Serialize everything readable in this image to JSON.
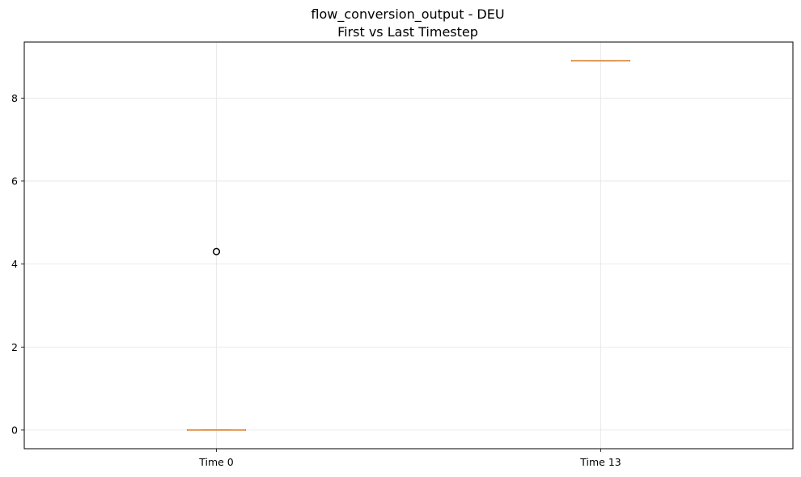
{
  "chart_data": {
    "type": "box",
    "title": "flow_conversion_output - DEU",
    "subtitle": "First vs Last Timestep",
    "xlabel": "",
    "ylabel": "",
    "categories": [
      "Time 0",
      "Time 13"
    ],
    "boxes": [
      {
        "category": "Time 0",
        "min": 0.0,
        "q1": 0.0,
        "median": 0.0,
        "q3": 0.0,
        "max": 0.0,
        "outliers": [
          4.3
        ]
      },
      {
        "category": "Time 13",
        "min": 8.9,
        "q1": 8.9,
        "median": 8.9,
        "q3": 8.9,
        "max": 8.9,
        "outliers": []
      }
    ],
    "yticks": [
      0,
      2,
      4,
      6,
      8
    ],
    "ylim": [
      -0.45,
      9.35
    ],
    "grid": true,
    "colors": {
      "median": "#e08a3c",
      "box": "#000000",
      "grid": "#e5e5e5",
      "outlier_edge": "#000000"
    }
  }
}
